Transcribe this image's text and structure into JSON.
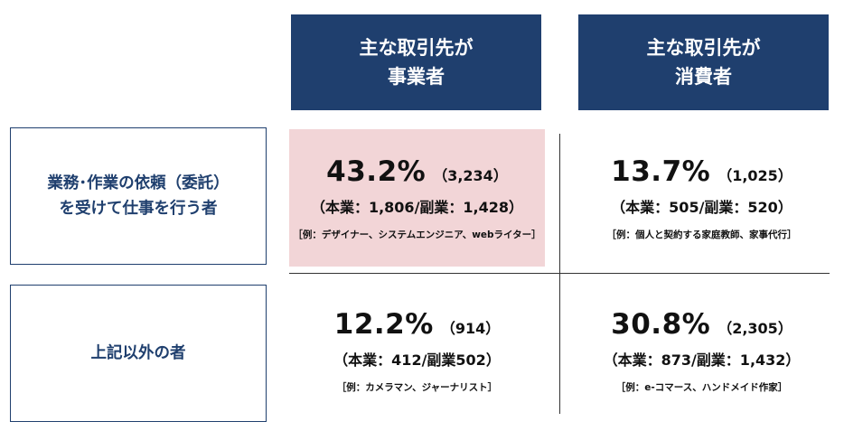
{
  "headers": {
    "business": [
      "主な取引先が",
      "事業者"
    ],
    "consumer": [
      "主な取引先が",
      "消費者"
    ]
  },
  "rows": {
    "contract": [
      "業務･作業の依頼（委託）",
      "を受けて仕事を行う者"
    ],
    "other": [
      "上記以外の者"
    ]
  },
  "cells": {
    "business_contract": {
      "percent": "43.2%",
      "count": "（3,234）",
      "breakdown": "（本業：1,806/副業：1,428）",
      "example": "［例：デザイナー、システムエンジニア、webライター］",
      "highlight": "#f2d5d7"
    },
    "consumer_contract": {
      "percent": "13.7%",
      "count": "（1,025）",
      "breakdown": "（本業：505/副業：520）",
      "example": "［例：個人と契約する家庭教師、家事代行］"
    },
    "business_other": {
      "percent": "12.2%",
      "count": "（914）",
      "breakdown": "（本業：412/副業502）",
      "example": "［例：カメラマン、ジャーナリスト］"
    },
    "consumer_other": {
      "percent": "30.8%",
      "count": "（2,305）",
      "breakdown": "（本業：873/副業：1,432）",
      "example": "［例：e-コマース、ハンドメイド作家］"
    }
  },
  "colors": {
    "header_bg": "#1f3f6e",
    "label_text": "#1f3f6e",
    "highlight_cell": "#f2d5d7"
  }
}
